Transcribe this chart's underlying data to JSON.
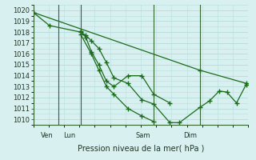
{
  "bg_color": "#d8f0f0",
  "grid_color": "#b8dede",
  "line_color": "#1a6b1a",
  "ylim": [
    1009.5,
    1020.5
  ],
  "yticks": [
    1010,
    1011,
    1012,
    1013,
    1014,
    1015,
    1016,
    1017,
    1018,
    1019,
    1020
  ],
  "xlim": [
    0.0,
    1.0
  ],
  "vlines": [
    0.115,
    0.22,
    0.56,
    0.775
  ],
  "day_labels": [
    [
      "Ven",
      0.065
    ],
    [
      "Lun",
      0.168
    ],
    [
      "Sam",
      0.51
    ],
    [
      "Dim",
      0.73
    ]
  ],
  "xlabel": "Pression niveau de la mer( hPa )",
  "series": [
    {
      "x": [
        0.0,
        0.075,
        0.22,
        0.245,
        0.27,
        0.305,
        0.34,
        0.375,
        0.44,
        0.505,
        0.56,
        0.635,
        0.68,
        0.775,
        0.82,
        0.865,
        0.9,
        0.945,
        0.99
      ],
      "y": [
        1019.8,
        1018.6,
        1018.0,
        1017.7,
        1017.2,
        1016.5,
        1015.2,
        1013.8,
        1013.3,
        1011.8,
        1011.4,
        1009.7,
        1009.7,
        1011.1,
        1011.7,
        1012.6,
        1012.5,
        1011.5,
        1013.2
      ]
    },
    {
      "x": [
        0.22,
        0.245,
        0.27,
        0.305,
        0.34,
        0.375,
        0.44,
        0.505,
        0.56,
        0.635
      ],
      "y": [
        1018.1,
        1017.5,
        1016.2,
        1015.0,
        1013.5,
        1013.0,
        1014.0,
        1014.0,
        1012.3,
        1011.5
      ]
    },
    {
      "x": [
        0.22,
        0.27,
        0.305,
        0.34,
        0.375,
        0.44,
        0.505,
        0.56
      ],
      "y": [
        1017.8,
        1016.0,
        1014.5,
        1013.0,
        1012.3,
        1011.0,
        1010.3,
        1009.8
      ]
    },
    {
      "x": [
        0.0,
        0.775,
        0.99
      ],
      "y": [
        1019.8,
        1014.5,
        1013.3
      ]
    }
  ]
}
